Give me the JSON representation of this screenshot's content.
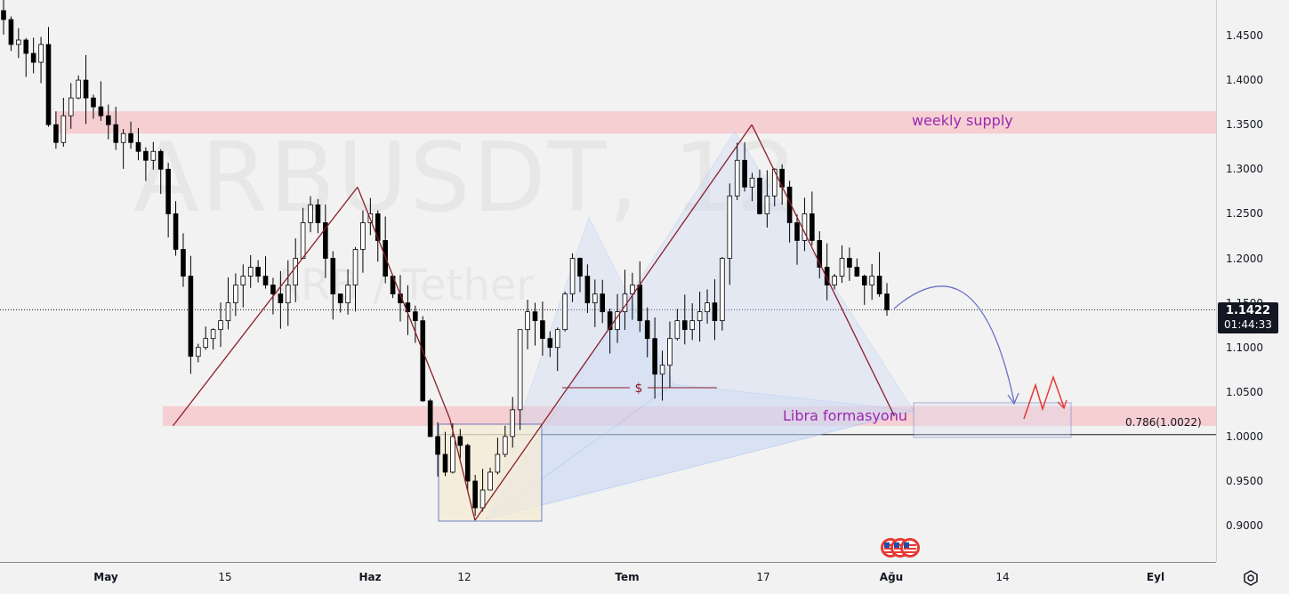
{
  "chart_data": {
    "type": "candlestick",
    "symbol_watermark": "ARBUSDT, 12",
    "description_watermark": "ARB / Tether",
    "ylim": [
      0.86,
      1.49
    ],
    "price_ticks": [
      "1.4500",
      "1.4000",
      "1.3500",
      "1.3000",
      "1.2500",
      "1.2000",
      "1.1500",
      "1.1000",
      "1.0500",
      "1.0000",
      "0.9500",
      "0.9000"
    ],
    "time_labels": [
      {
        "label": "May",
        "bold": true
      },
      {
        "label": "15",
        "bold": false
      },
      {
        "label": "Haz",
        "bold": true
      },
      {
        "label": "12",
        "bold": false
      },
      {
        "label": "Tem",
        "bold": true
      },
      {
        "label": "17",
        "bold": false
      },
      {
        "label": "Ağu",
        "bold": true
      },
      {
        "label": "14",
        "bold": false
      },
      {
        "label": "Eyl",
        "bold": true
      }
    ],
    "current_price": "1.1422",
    "countdown": "01:44:33",
    "zones": [
      {
        "name": "weekly supply",
        "low": 1.34,
        "high": 1.365
      },
      {
        "name": "Libra formasyonu",
        "low": 1.012,
        "high": 1.034
      }
    ],
    "fib_level": {
      "label": "0.786(1.0022)",
      "price": 1.0022
    },
    "pattern_points": [
      {
        "x": "May 09",
        "y": 1.012
      },
      {
        "x": "May 31",
        "y": 1.28
      },
      {
        "x": "Jun 11",
        "y": 1.02
      },
      {
        "x": "Jun 14",
        "y": 0.906
      },
      {
        "x": "Jul 17",
        "y": 1.35
      },
      {
        "x": "Aug 03",
        "y": 1.023
      }
    ],
    "liquidity_marker": "$",
    "closes": [
      1.468,
      1.44,
      1.445,
      1.43,
      1.42,
      1.44,
      1.35,
      1.33,
      1.36,
      1.38,
      1.4,
      1.38,
      1.37,
      1.36,
      1.35,
      1.33,
      1.34,
      1.33,
      1.32,
      1.31,
      1.32,
      1.3,
      1.25,
      1.21,
      1.18,
      1.09,
      1.1,
      1.11,
      1.12,
      1.13,
      1.15,
      1.17,
      1.18,
      1.19,
      1.18,
      1.17,
      1.16,
      1.15,
      1.17,
      1.2,
      1.24,
      1.26,
      1.24,
      1.2,
      1.16,
      1.15,
      1.17,
      1.21,
      1.24,
      1.25,
      1.22,
      1.18,
      1.16,
      1.15,
      1.14,
      1.13,
      1.04,
      1.0,
      0.98,
      0.96,
      1.0,
      0.99,
      0.95,
      0.92,
      0.94,
      0.96,
      0.98,
      1.0,
      1.03,
      1.12,
      1.14,
      1.13,
      1.11,
      1.1,
      1.12,
      1.16,
      1.2,
      1.18,
      1.15,
      1.16,
      1.14,
      1.12,
      1.14,
      1.16,
      1.17,
      1.13,
      1.11,
      1.07,
      1.08,
      1.11,
      1.13,
      1.12,
      1.13,
      1.14,
      1.15,
      1.13,
      1.2,
      1.27,
      1.31,
      1.28,
      1.29,
      1.25,
      1.27,
      1.3,
      1.28,
      1.24,
      1.22,
      1.25,
      1.22,
      1.19,
      1.17,
      1.18,
      1.2,
      1.19,
      1.18,
      1.17,
      1.18,
      1.16,
      1.1422
    ]
  },
  "colors": {
    "bull": "#000000",
    "bear": "#000000",
    "pattern_line": "#8b1e2b",
    "pattern_fill": "#c9d8f5",
    "supply_zone": "#f6c9cc",
    "projection_box": "#3d5fb8",
    "arrow": "#6a70c8",
    "scenario": "#e53935",
    "zone_label": "#9c27b0"
  }
}
